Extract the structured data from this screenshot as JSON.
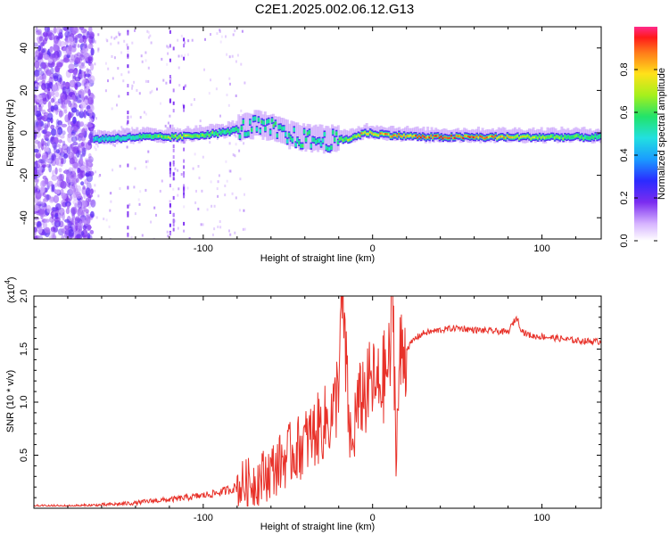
{
  "title": "C2E1.2025.002.06.12.G13",
  "colors": {
    "background": "#ffffff",
    "snr_line": "#e8322a",
    "spectrogram_low": "#7b2cf0",
    "spectrogram_mid": "#22e36a",
    "spectrogram_high": "#ff0000"
  },
  "chart_data": [
    {
      "type": "heatmap",
      "title": "",
      "xlabel": "Height of straight line (km)",
      "ylabel": "Frequency (Hz)",
      "xlim": [
        -200,
        135
      ],
      "ylim": [
        -50,
        50
      ],
      "xticks": [
        -100,
        0,
        100
      ],
      "xtick_labels": [
        "-100",
        "0",
        "100"
      ],
      "yticks": [
        40,
        20,
        0,
        -20,
        -40
      ],
      "ytick_labels": [
        "40",
        "20",
        "0",
        "-20",
        "-40"
      ],
      "colorbar": {
        "label": "Normalized spectral amplitude",
        "range": [
          0,
          1
        ],
        "ticks": [
          0.0,
          0.2,
          0.4,
          0.6,
          0.8
        ],
        "tick_labels": [
          "0.0",
          "0.2",
          "0.4",
          "0.6",
          "0.8"
        ]
      },
      "ridge": [
        {
          "x": -165,
          "freq": -3,
          "amp": 0.45
        },
        {
          "x": -140,
          "freq": -2,
          "amp": 0.55
        },
        {
          "x": -115,
          "freq": -2,
          "amp": 0.75
        },
        {
          "x": -90,
          "freq": 0,
          "amp": 0.6
        },
        {
          "x": -70,
          "freq": 3,
          "amp": 0.55
        },
        {
          "x": -60,
          "freq": 2,
          "amp": 0.6
        },
        {
          "x": -50,
          "freq": -2,
          "amp": 0.55
        },
        {
          "x": -40,
          "freq": -3,
          "amp": 0.6
        },
        {
          "x": -30,
          "freq": -4,
          "amp": 0.55
        },
        {
          "x": -15,
          "freq": -3,
          "amp": 0.7
        },
        {
          "x": -5,
          "freq": 0,
          "amp": 0.85
        },
        {
          "x": 10,
          "freq": -1,
          "amp": 0.85
        },
        {
          "x": 30,
          "freq": -2,
          "amp": 0.95
        },
        {
          "x": 60,
          "freq": -2,
          "amp": 0.95
        },
        {
          "x": 90,
          "freq": -2,
          "amp": 0.75
        },
        {
          "x": 135,
          "freq": -2,
          "amp": 0.55
        }
      ]
    },
    {
      "type": "line",
      "title": "",
      "xlabel": "Height of straight line (km)",
      "ylabel": "SNR (10 * v/v)",
      "yscale_label": "(x10",
      "yscale_exp": "4",
      "yscale_close": ")",
      "xlim": [
        -200,
        135
      ],
      "ylim": [
        0,
        2.0
      ],
      "xticks": [
        -100,
        0,
        100
      ],
      "xtick_labels": [
        "-100",
        "0",
        "100"
      ],
      "yticks": [
        0.5,
        1.0,
        1.5,
        2.0
      ],
      "ytick_labels": [
        "0.5",
        "1.0",
        "1.5",
        "2.0"
      ],
      "series": [
        {
          "x": [
            -200,
            -180,
            -160,
            -150,
            -140,
            -130,
            -120,
            -110,
            -100,
            -90,
            -80,
            -70,
            -65,
            -60,
            -55,
            -50,
            -45,
            -40,
            -35,
            -30,
            -25,
            -22,
            -20,
            -18,
            -16,
            -14,
            -12,
            -10,
            -8,
            -6,
            -4,
            -2,
            0,
            2,
            4,
            6,
            8,
            10,
            12,
            14,
            16,
            18,
            20,
            25,
            30,
            40,
            50,
            60,
            70,
            80,
            85,
            88,
            90,
            95,
            100,
            110,
            120,
            135
          ],
          "y": [
            0.02,
            0.02,
            0.03,
            0.04,
            0.05,
            0.07,
            0.08,
            0.1,
            0.12,
            0.15,
            0.2,
            0.25,
            0.3,
            0.35,
            0.42,
            0.5,
            0.55,
            0.62,
            0.7,
            0.78,
            0.85,
            0.95,
            1.3,
            1.98,
            1.4,
            0.8,
            0.5,
            0.9,
            0.95,
            1.1,
            1.05,
            1.15,
            1.2,
            1.1,
            1.15,
            1.2,
            1.3,
            1.35,
            2.0,
            0.5,
            1.4,
            1.45,
            1.5,
            1.6,
            1.65,
            1.68,
            1.7,
            1.68,
            1.67,
            1.66,
            1.8,
            1.68,
            1.65,
            1.62,
            1.62,
            1.6,
            1.58,
            1.57
          ]
        }
      ]
    }
  ]
}
